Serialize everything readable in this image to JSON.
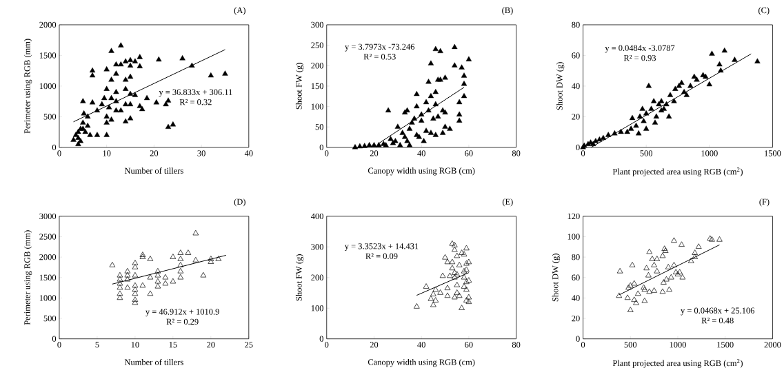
{
  "chart_data": [
    {
      "type": "scatter",
      "title": "(A)",
      "xlabel": "Number of tillers",
      "ylabel": "Perimeter using RGB (mm)",
      "xlim": [
        0,
        40
      ],
      "ylim": [
        0,
        2000
      ],
      "xticks": [
        0,
        10,
        20,
        30,
        40
      ],
      "yticks": [
        0,
        500,
        1000,
        1500,
        2000
      ],
      "annotations": [
        "y = 36.833x + 306.11",
        "R² = 0.32"
      ],
      "series": [
        {
          "type": "scatter",
          "marker": "triangle",
          "color": "#000000",
          "x": [
            4,
            4,
            3.5,
            4.5,
            5,
            5,
            5.2,
            6,
            5.5,
            6.5,
            7,
            7,
            7,
            8,
            8,
            4.5,
            6,
            10,
            10,
            9.5,
            10,
            10.5,
            10,
            10,
            11,
            11,
            11,
            11,
            12,
            12,
            12,
            12,
            13,
            13,
            14,
            14,
            14,
            14,
            14,
            15,
            15,
            15,
            15,
            15,
            15,
            16,
            16,
            17,
            17,
            17,
            17.5,
            18.5,
            20.5,
            21,
            22.5,
            23,
            23,
            24,
            26,
            28,
            32,
            35,
            3,
            4,
            5,
            9,
            12,
            13
          ],
          "values": [
            150,
            50,
            200,
            300,
            400,
            750,
            550,
            500,
            250,
            200,
            1250,
            1170,
            730,
            600,
            200,
            100,
            350,
            200,
            1270,
            800,
            950,
            650,
            500,
            400,
            1570,
            1100,
            800,
            450,
            1350,
            1200,
            900,
            600,
            1660,
            1350,
            1400,
            1100,
            950,
            700,
            420,
            1420,
            1330,
            1150,
            870,
            700,
            470,
            850,
            1400,
            1470,
            1320,
            670,
            620,
            800,
            730,
            1430,
            700,
            760,
            330,
            370,
            1450,
            1330,
            1170,
            1200,
            120,
            250,
            300,
            700,
            750,
            600
          ]
        },
        {
          "type": "line",
          "color": "#000000",
          "x": [
            3,
            35
          ],
          "values": [
            417,
            1595
          ]
        }
      ]
    },
    {
      "type": "scatter",
      "title": "(B)",
      "xlabel": "Canopy width using RGB (cm)",
      "ylabel": "Shoot FW (g)",
      "xlim": [
        0,
        80
      ],
      "ylim": [
        0,
        300
      ],
      "xticks": [
        0,
        20,
        40,
        60,
        80
      ],
      "yticks": [
        0,
        50,
        100,
        150,
        200,
        250,
        300
      ],
      "annotations": [
        "y = 3.7973x -73.246",
        "R² = 0.53"
      ],
      "series": [
        {
          "type": "scatter",
          "marker": "triangle",
          "color": "#000000",
          "x": [
            12,
            14,
            16,
            18,
            20,
            22,
            25,
            26,
            27,
            28,
            29,
            30,
            31,
            32,
            33,
            33,
            34,
            34,
            35,
            35,
            37,
            38,
            38,
            38,
            39,
            40,
            41,
            42,
            42,
            43,
            43,
            44,
            44,
            44,
            45,
            46,
            46,
            46,
            46,
            47,
            47,
            48,
            48,
            49,
            49,
            50,
            50,
            50,
            52,
            54,
            54,
            56,
            56,
            56,
            57,
            58,
            58,
            58,
            60,
            36,
            40,
            24
          ],
          "values": [
            0,
            2,
            3,
            5,
            5,
            5,
            5,
            90,
            20,
            10,
            15,
            50,
            5,
            35,
            25,
            85,
            90,
            15,
            45,
            5,
            70,
            130,
            100,
            30,
            25,
            80,
            15,
            110,
            40,
            160,
            90,
            205,
            125,
            35,
            70,
            135,
            105,
            240,
            30,
            165,
            75,
            235,
            165,
            90,
            35,
            170,
            85,
            50,
            45,
            245,
            200,
            110,
            80,
            65,
            195,
            175,
            155,
            125,
            215,
            60,
            65,
            8
          ]
        },
        {
          "type": "line",
          "color": "#000000",
          "x": [
            22,
            58
          ],
          "values": [
            10,
            147
          ]
        }
      ]
    },
    {
      "type": "scatter",
      "title": "(C)",
      "xlabel": "Plant projected area using RGB (cm$^{2}$)",
      "ylabel": "Shoot DW (g)",
      "xlim": [
        0,
        1500
      ],
      "ylim": [
        0,
        80
      ],
      "xticks": [
        0,
        500,
        1000,
        1500
      ],
      "yticks": [
        0,
        20,
        40,
        60,
        80
      ],
      "annotations": [
        "y = 0.0484x -3.0787",
        "R² = 0.93"
      ],
      "series": [
        {
          "type": "scatter",
          "marker": "triangle",
          "color": "#000000",
          "x": [
            0,
            20,
            40,
            60,
            80,
            100,
            130,
            160,
            200,
            250,
            300,
            350,
            380,
            390,
            420,
            440,
            470,
            480,
            500,
            500,
            520,
            540,
            560,
            570,
            580,
            600,
            620,
            640,
            660,
            680,
            690,
            720,
            730,
            760,
            780,
            800,
            820,
            850,
            880,
            900,
            950,
            970,
            1000,
            1020,
            1080,
            1090,
            1120,
            1200,
            1380,
            450,
            620,
            10
          ],
          "values": [
            0,
            null,
            2,
            3,
            2,
            4,
            5,
            6,
            8,
            9,
            10,
            10,
            12,
            19,
            14,
            9,
            25,
            17,
            12,
            22,
            40,
            25,
            30,
            16,
            20,
            28,
            30,
            25,
            28,
            20,
            34,
            30,
            38,
            40,
            42,
            36,
            34,
            40,
            46,
            44,
            47,
            46,
            41,
            61,
            54,
            50,
            63,
            57,
            56,
            20,
            24,
            1
          ]
        },
        {
          "type": "line",
          "color": "#000000",
          "x": [
            64,
            1330
          ],
          "values": [
            0,
            61
          ]
        }
      ]
    },
    {
      "type": "scatter",
      "title": "(D)",
      "xlabel": "Number of tillers",
      "ylabel": "Perimeter using RGB (mm)",
      "xlim": [
        0,
        25
      ],
      "ylim": [
        0,
        3000
      ],
      "xticks": [
        0,
        5,
        10,
        15,
        20,
        25
      ],
      "yticks": [
        0,
        500,
        1000,
        1500,
        2000,
        2500,
        3000
      ],
      "annotations": [
        "y = 46.912x + 1010.9",
        "R² = 0.29"
      ],
      "series": [
        {
          "type": "scatter",
          "marker": "triangle",
          "color": "#000000",
          "x": [
            7,
            8,
            8,
            8,
            8,
            8,
            8,
            9,
            9,
            9,
            9,
            10,
            10,
            10,
            10,
            10,
            10,
            10,
            10,
            11,
            11,
            11,
            12,
            12,
            12,
            13,
            13,
            13,
            13,
            14,
            14,
            15,
            15,
            16,
            16,
            16,
            16,
            16,
            17,
            18,
            18,
            19,
            20,
            20,
            21
          ],
          "values": [
            1800,
            1550,
            1450,
            1350,
            1250,
            1100,
            1000,
            1650,
            1550,
            1450,
            1250,
            1850,
            1750,
            1550,
            1300,
            1200,
            1100,
            950,
            880,
            2050,
            2000,
            1300,
            1950,
            1500,
            1100,
            1650,
            1550,
            1400,
            1280,
            1500,
            1350,
            2000,
            1400,
            2100,
            1950,
            1800,
            1650,
            1500,
            2100,
            2580,
            1920,
            1550,
            1950,
            1880,
            1950
          ]
        },
        {
          "type": "line",
          "color": "#000000",
          "x": [
            7,
            22
          ],
          "values": [
            1340,
            2045
          ]
        }
      ]
    },
    {
      "type": "scatter",
      "title": "(E)",
      "xlabel": "Canopy width using RGB (cm)",
      "ylabel": "Shoot FW (g)",
      "xlim": [
        0,
        80
      ],
      "ylim": [
        0,
        400
      ],
      "xticks": [
        0,
        20,
        40,
        60,
        80
      ],
      "yticks": [
        0,
        100,
        200,
        300,
        400
      ],
      "annotations": [
        "y = 3.3523x + 14.431",
        "R² = 0.09"
      ],
      "series": [
        {
          "type": "scatter",
          "marker": "triangle",
          "color": "#000000",
          "x": [
            38,
            42,
            44,
            45,
            45,
            46,
            46,
            48,
            49,
            50,
            51,
            51,
            51,
            52,
            53,
            53,
            53,
            54,
            54,
            54,
            54,
            54,
            55,
            55,
            55,
            55,
            56,
            56,
            57,
            57,
            58,
            58,
            58,
            58,
            59,
            59,
            59,
            59,
            59,
            59,
            60,
            60,
            60,
            60
          ],
          "values": [
            105,
            170,
            130,
            145,
            110,
            125,
            160,
            150,
            205,
            265,
            250,
            165,
            140,
            205,
            310,
            250,
            230,
            305,
            290,
            215,
            200,
            135,
            270,
            210,
            175,
            150,
            240,
            140,
            280,
            100,
            275,
            220,
            170,
            200,
            295,
            245,
            225,
            185,
            160,
            125,
            250,
            190,
            135,
            120
          ]
        },
        {
          "type": "line",
          "color": "#000000",
          "x": [
            38,
            60
          ],
          "values": [
            142,
            216
          ]
        }
      ]
    },
    {
      "type": "scatter",
      "title": "(F)",
      "xlabel": "Plant projected area using RGB (cm$^{2}$)",
      "ylabel": "Shoot DW (g)",
      "xlim": [
        0,
        2000
      ],
      "ylim": [
        0,
        120
      ],
      "xticks": [
        0,
        500,
        1000,
        1500,
        2000
      ],
      "yticks": [
        0,
        20,
        40,
        60,
        80,
        100,
        120
      ],
      "annotations": [
        "y = 0.0468x + 25.106",
        "R² = 0.48"
      ],
      "series": [
        {
          "type": "scatter",
          "marker": "triangle",
          "color": "#000000",
          "x": [
            380,
            390,
            470,
            480,
            500,
            500,
            520,
            540,
            540,
            560,
            580,
            640,
            650,
            650,
            670,
            690,
            700,
            700,
            730,
            750,
            750,
            780,
            780,
            840,
            840,
            850,
            860,
            870,
            880,
            900,
            910,
            930,
            960,
            960,
            980,
            1000,
            1040,
            1050,
            1140,
            1180,
            1180,
            1220,
            1340,
            1360,
            1440,
            1020
          ],
          "values": [
            42,
            66,
            40,
            50,
            52,
            28,
            72,
            54,
            38,
            35,
            44,
            50,
            48,
            37,
            69,
            62,
            46,
            85,
            78,
            72,
            47,
            78,
            66,
            81,
            46,
            55,
            88,
            86,
            58,
            70,
            48,
            60,
            96,
            72,
            65,
            63,
            92,
            60,
            76,
            84,
            80,
            90,
            98,
            97,
            97,
            65
          ]
        },
        {
          "type": "line",
          "color": "#000000",
          "x": [
            380,
            1440
          ],
          "values": [
            43,
            92
          ]
        }
      ]
    }
  ]
}
